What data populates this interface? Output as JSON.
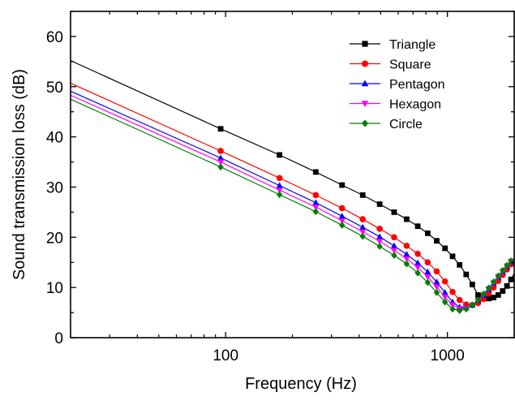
{
  "chart_data": {
    "type": "line",
    "xscale": "log",
    "xlabel": "Frequency (Hz)",
    "ylabel": "Sound transmission loss (dB)",
    "xlim": [
      20,
      2000
    ],
    "ylim": [
      0,
      65
    ],
    "xticks": [
      100,
      1000
    ],
    "xtick_labels": [
      "100",
      "1000"
    ],
    "yticks": [
      0,
      10,
      20,
      30,
      40,
      50,
      60
    ],
    "ytick_labels": [
      "0",
      "10",
      "20",
      "30",
      "40",
      "50",
      "60"
    ],
    "grid": false,
    "legend_position": "top-right",
    "series": [
      {
        "name": "Triangle",
        "color": "#000000",
        "marker": "square",
        "x": [
          20,
          95,
          175,
          255,
          335,
          415,
          495,
          575,
          655,
          735,
          815,
          895,
          975,
          1055,
          1135,
          1215,
          1295,
          1375,
          1455,
          1535,
          1615,
          1695,
          1775,
          1855,
          1935,
          2000
        ],
        "y": [
          55.2,
          41.6,
          36.4,
          33.0,
          30.4,
          28.4,
          26.6,
          25.0,
          23.6,
          22.2,
          20.8,
          19.3,
          17.8,
          16.2,
          14.5,
          12.6,
          10.6,
          8.5,
          7.9,
          7.8,
          8.0,
          8.5,
          9.3,
          10.3,
          11.6,
          12.8
        ]
      },
      {
        "name": "Square",
        "color": "#ff0000",
        "marker": "circle",
        "x": [
          20,
          95,
          175,
          255,
          335,
          415,
          495,
          575,
          655,
          735,
          815,
          895,
          975,
          1055,
          1135,
          1215,
          1295,
          1375,
          1455,
          1535,
          1615,
          1695,
          1775,
          1855,
          1935,
          2000
        ],
        "y": [
          50.7,
          37.2,
          31.8,
          28.4,
          25.8,
          23.6,
          21.7,
          20.0,
          18.3,
          16.7,
          15.0,
          13.2,
          11.2,
          9.1,
          7.5,
          6.6,
          6.5,
          6.9,
          7.7,
          8.8,
          10.0,
          11.3,
          12.5,
          13.6,
          14.6,
          15.3
        ]
      },
      {
        "name": "Pentagon",
        "color": "#0000ff",
        "marker": "triangle-up",
        "x": [
          20,
          95,
          175,
          255,
          335,
          415,
          495,
          575,
          655,
          735,
          815,
          895,
          975,
          1055,
          1135,
          1215,
          1295,
          1375,
          1455,
          1535,
          1615,
          1695,
          1775,
          1855,
          1935,
          2000
        ],
        "y": [
          49.1,
          35.8,
          30.3,
          26.9,
          24.2,
          22.0,
          20.1,
          18.3,
          16.6,
          14.9,
          13.1,
          11.1,
          9.0,
          7.1,
          6.1,
          6.0,
          6.5,
          7.4,
          8.4,
          9.6,
          10.8,
          12.0,
          13.1,
          14.2,
          15.1,
          15.7
        ]
      },
      {
        "name": "Hexagon",
        "color": "#ff00ff",
        "marker": "triangle-down",
        "x": [
          20,
          95,
          175,
          255,
          335,
          415,
          495,
          575,
          655,
          735,
          815,
          895,
          975,
          1055,
          1135,
          1215,
          1295,
          1375,
          1455,
          1535,
          1615,
          1695,
          1775,
          1855,
          1935,
          2000
        ],
        "y": [
          48.3,
          35.0,
          29.4,
          26.0,
          23.3,
          21.1,
          19.2,
          17.4,
          15.7,
          14.0,
          12.1,
          10.1,
          8.1,
          6.5,
          5.8,
          5.9,
          6.5,
          7.4,
          8.5,
          9.7,
          10.9,
          12.1,
          13.2,
          14.3,
          15.2,
          15.8
        ]
      },
      {
        "name": "Circle",
        "color": "#008000",
        "marker": "diamond",
        "x": [
          20,
          95,
          175,
          255,
          335,
          415,
          495,
          575,
          655,
          735,
          815,
          895,
          975,
          1055,
          1135,
          1215,
          1295,
          1375,
          1455,
          1535,
          1615,
          1695,
          1775,
          1855,
          1935,
          2000
        ],
        "y": [
          47.5,
          34.0,
          28.5,
          25.1,
          22.4,
          20.2,
          18.2,
          16.4,
          14.7,
          12.9,
          11.0,
          9.0,
          7.1,
          5.7,
          5.4,
          5.7,
          6.5,
          7.5,
          8.7,
          9.9,
          11.1,
          12.3,
          13.4,
          14.4,
          15.3,
          15.9
        ]
      }
    ]
  }
}
